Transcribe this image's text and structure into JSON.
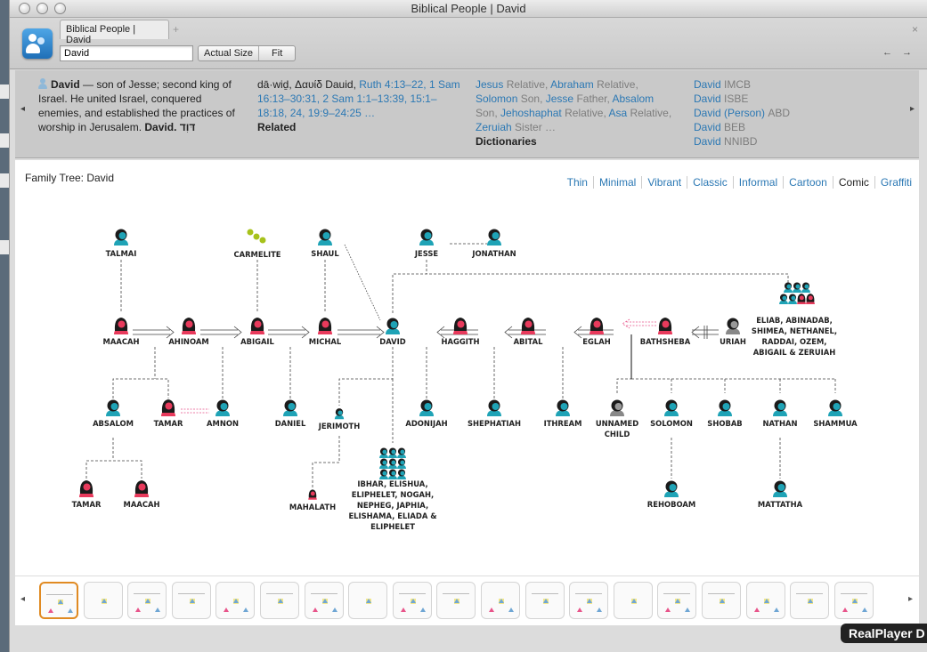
{
  "window": {
    "title": "Biblical People | David"
  },
  "toolbar": {
    "tab_label": "Biblical People | David",
    "tab_add": "+",
    "tab_close": "×",
    "search_value": "David",
    "actual_size_label": "Actual Size",
    "fit_label": "Fit",
    "back_arrow": "←",
    "forward_arrow": "→"
  },
  "info": {
    "summary_name": "David",
    "summary_text": "— son of Jesse; second king of Israel.  He united Israel, conquered enemies, and established the practices of worship in Jerusalem.",
    "summary_name2": "David.",
    "summary_hebrew": "דּוִד",
    "pronunciation": "dā·wiḏ, Δαυίδ Dauid,",
    "refs": [
      "Ruth 4:13–22,",
      "1 Sam 16:13–30:31,",
      "2 Sam 1:1–13:39,",
      "15:1–18:18,",
      "24,",
      "19:9–24:25 …"
    ],
    "related_heading": "Related",
    "relations": [
      {
        "name": "Jesus",
        "role": "Relative,"
      },
      {
        "name": "Abraham",
        "role": "Relative,"
      },
      {
        "name": "Solomon",
        "role": "Son,"
      },
      {
        "name": "Jesse",
        "role": "Father,"
      },
      {
        "name": "Absalom",
        "role": ""
      },
      {
        "name": "",
        "role": "Son,"
      },
      {
        "name": "Jehoshaphat",
        "role": "Relative,"
      },
      {
        "name": "Asa",
        "role": "Relative,"
      },
      {
        "name": "Zeruiah",
        "role": "Sister …"
      }
    ],
    "dictionaries_heading": "Dictionaries",
    "dictionaries": [
      {
        "name": "David",
        "source": "IMCB"
      },
      {
        "name": "David",
        "source": "ISBE"
      },
      {
        "name": "David (Person)",
        "source": "ABD"
      },
      {
        "name": "David",
        "source": "BEB"
      },
      {
        "name": "David",
        "source": "NNIBD"
      }
    ],
    "left_arrow": "◂",
    "right_arrow": "▸"
  },
  "tree": {
    "heading": "Family Tree: David",
    "styles": [
      "Thin",
      "Minimal",
      "Vibrant",
      "Classic",
      "Informal",
      "Cartoon",
      "Comic",
      "Graffiti"
    ],
    "active_style": "Comic",
    "people": {
      "talmai": "TALMAI",
      "carmelite": "CARMELITE",
      "shaul": "SHAUL",
      "jesse": "JESSE",
      "jonathan": "JONATHAN",
      "maacah": "MAACAH",
      "ahinoam": "AHINOAM",
      "abigail": "ABIGAIL",
      "michal": "MICHAL",
      "david": "DAVID",
      "haggith": "HAGGITH",
      "abital": "ABITAL",
      "eglah": "EGLAH",
      "bathsheba": "BATHSHEBA",
      "uriah": "URIAH",
      "siblings_1": "ELIAB, ABINADAB,",
      "siblings_2": "SHIMEA, NETHANEL,",
      "siblings_3": "RADDAI, OZEM,",
      "siblings_4": "ABIGAIL & ZERUIAH",
      "absalom": "ABSALOM",
      "tamar": "TAMAR",
      "amnon": "AMNON",
      "daniel": "DANIEL",
      "jerimoth": "JERIMOTH",
      "adonijah": "ADONIJAH",
      "shephatiah": "SHEPHATIAH",
      "ithream": "ITHREAM",
      "unnamed_1": "UNNAMED",
      "unnamed_2": "CHILD",
      "solomon": "SOLOMON",
      "shobab": "SHOBAB",
      "nathan": "NATHAN",
      "shammua": "SHAMMUA",
      "tamar2": "TAMAR",
      "maacah2": "MAACAH",
      "mahalath": "MAHALATH",
      "ibhar_1": "IBHAR, ELISHUA,",
      "ibhar_2": "ELIPHELET, NOGAH,",
      "ibhar_3": "NEPHEG, JAPHIA,",
      "ibhar_4": "ELISHAMA, ELIADA &",
      "ibhar_5": "ELIPHELET",
      "rehoboam": "REHOBOAM",
      "mattatha": "MATTATHA"
    }
  },
  "thumbnails": {
    "left_arrow": "◂",
    "right_arrow": "▸",
    "count": 19,
    "selected": 0
  },
  "overlay": {
    "realplayer": "RealPlayer D"
  },
  "colors": {
    "link": "#2b78b4",
    "female": "#e83a5c",
    "male": "#1fa3b6",
    "selected_thumb": "#e08a22"
  }
}
